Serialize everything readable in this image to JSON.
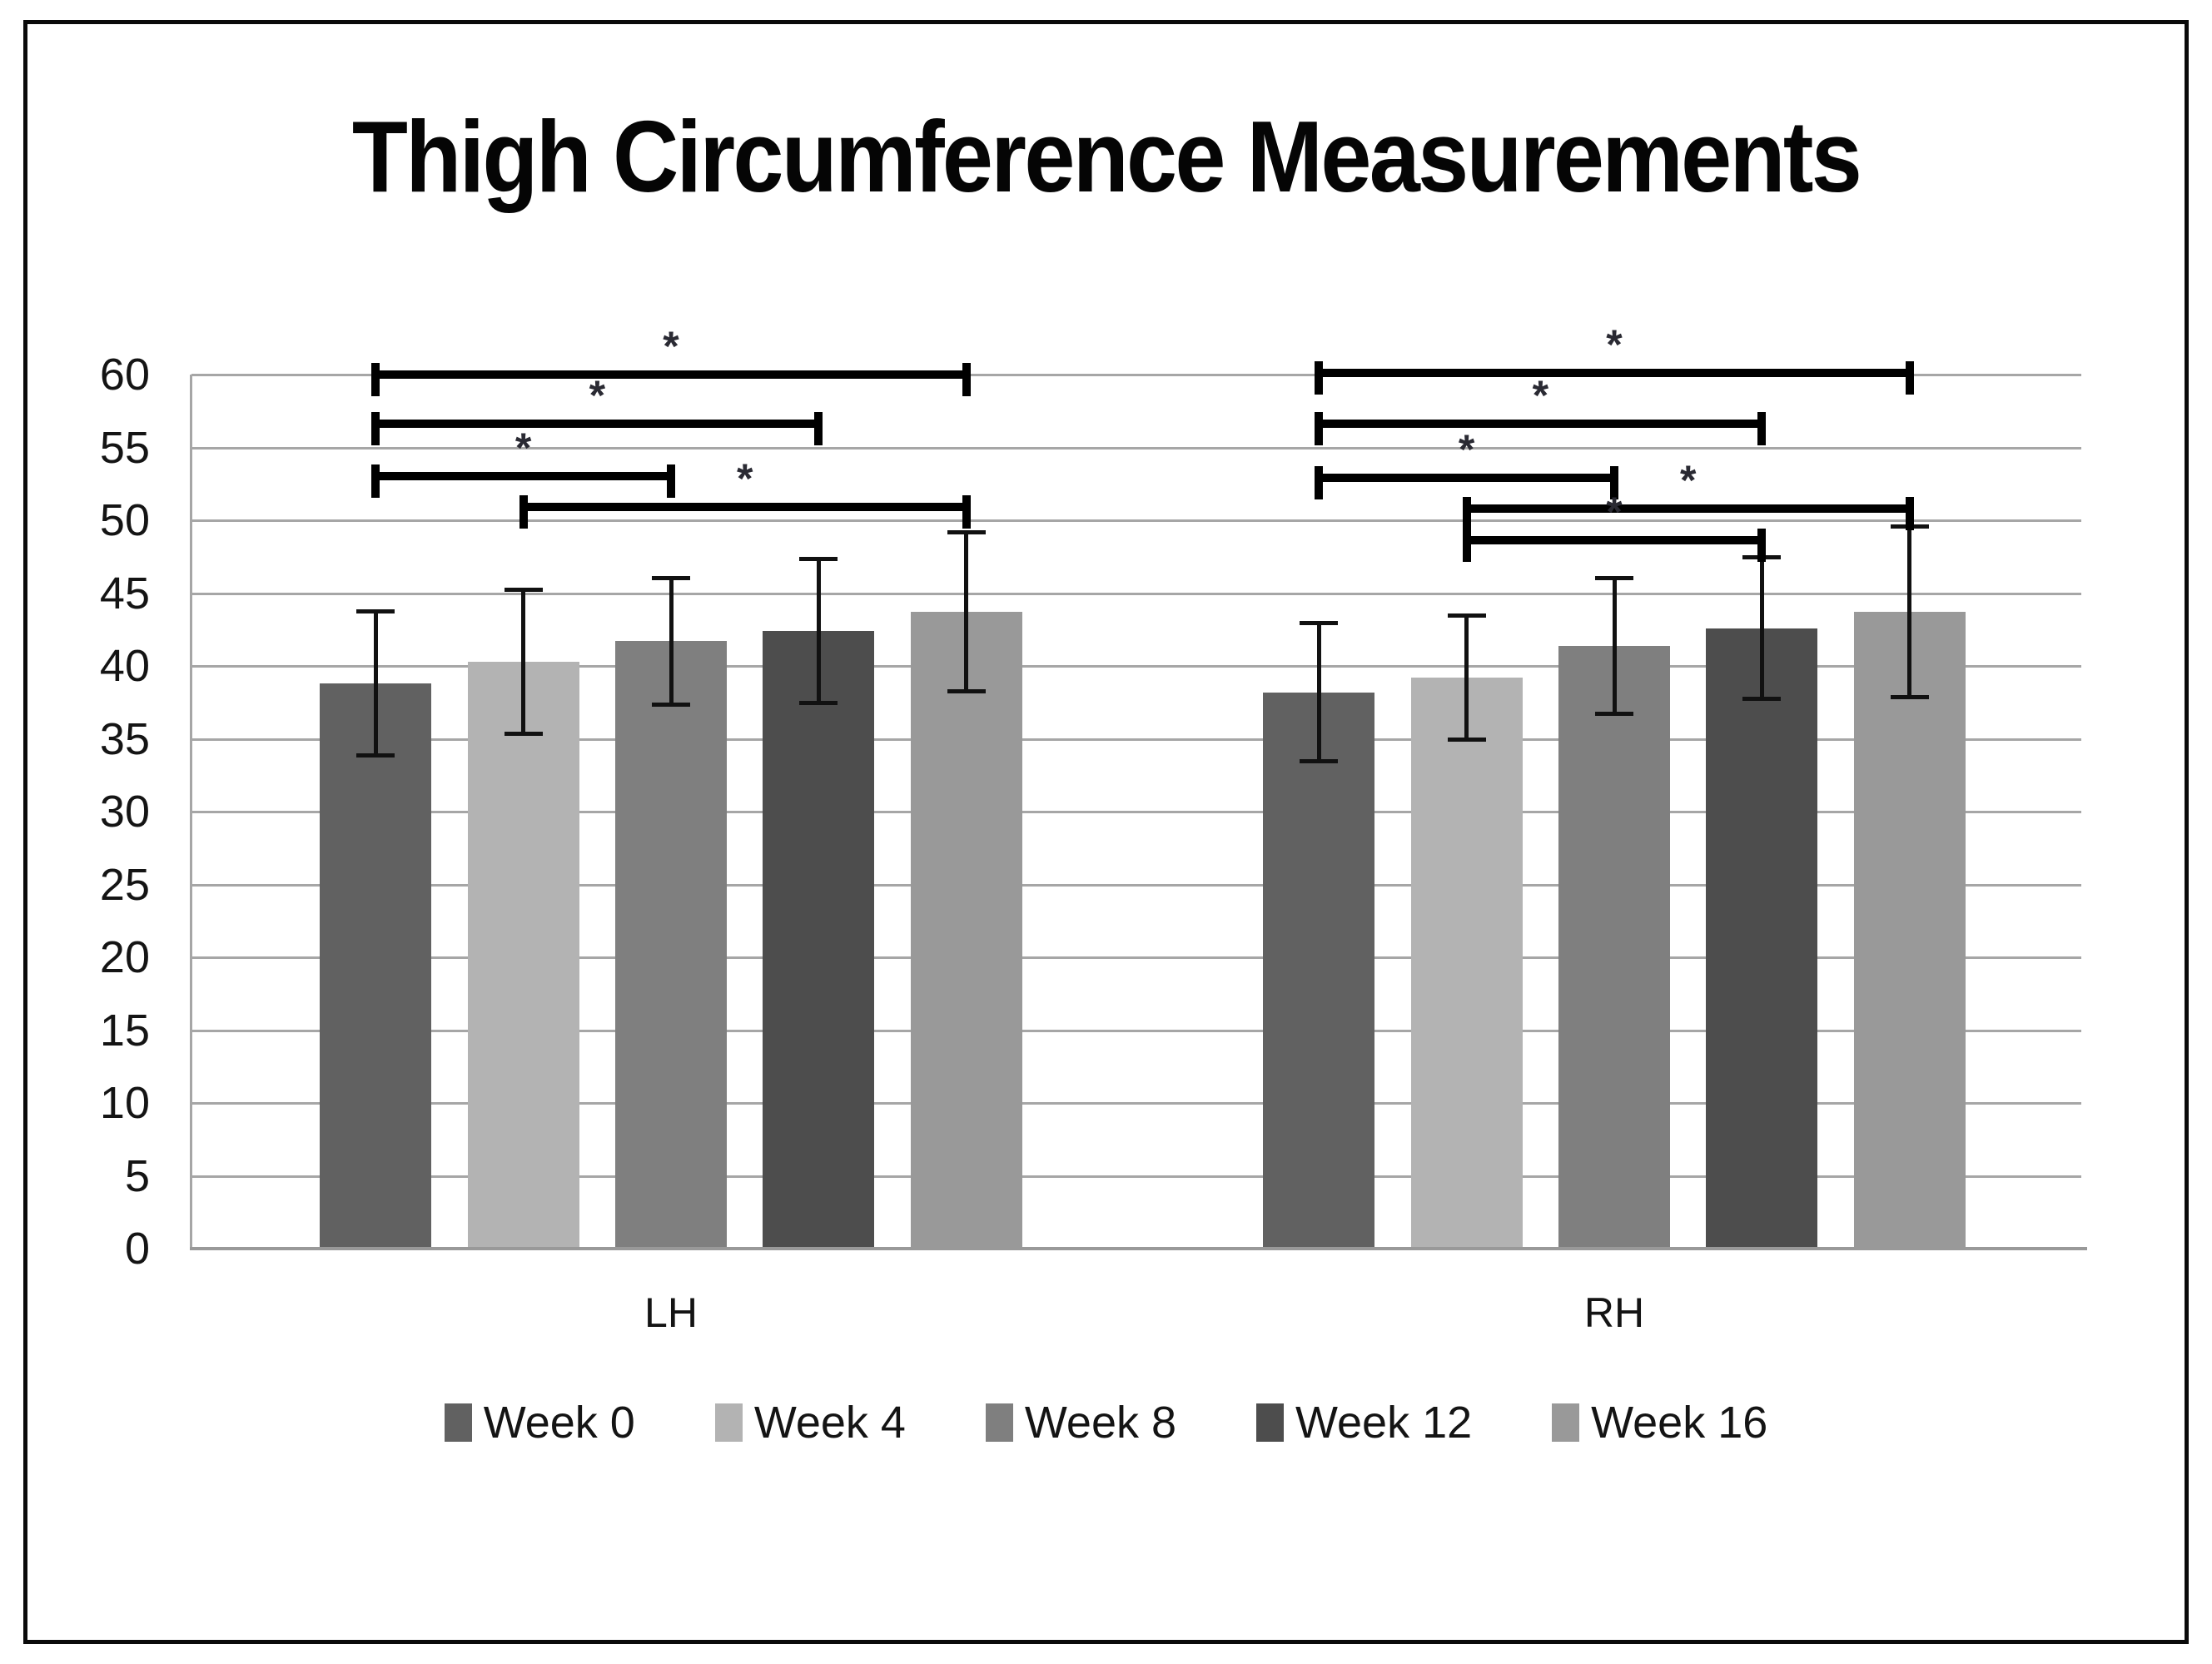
{
  "title": "Thigh Circumference Measurements",
  "colors": {
    "grid": "#a6a6a6",
    "axis": "#a6a6a6",
    "baseline": "#999999",
    "bracket": "#000000",
    "asterisk": "#2a2a33",
    "error_bar": "#111111",
    "text": "#141414",
    "frame_border": "#0a0a0a",
    "background": "#ffffff"
  },
  "chart_data": {
    "type": "bar",
    "title": "Thigh Circumference Measurements",
    "categories": [
      "LH",
      "RH"
    ],
    "series": [
      {
        "name": "Week 0",
        "color": "#616161",
        "values": [
          38.8,
          38.2
        ],
        "errors": [
          5.1,
          4.9
        ]
      },
      {
        "name": "Week 4",
        "color": "#b3b3b3",
        "values": [
          40.3,
          39.2
        ],
        "errors": [
          5.1,
          4.4
        ]
      },
      {
        "name": "Week 8",
        "color": "#7f7f7f",
        "values": [
          41.7,
          41.4
        ],
        "errors": [
          4.5,
          4.8
        ]
      },
      {
        "name": "Week 12",
        "color": "#4d4d4d",
        "values": [
          42.4,
          42.6
        ],
        "errors": [
          5.1,
          5.0
        ]
      },
      {
        "name": "Week 16",
        "color": "#999999",
        "values": [
          43.7,
          43.7
        ],
        "errors": [
          5.6,
          6.0
        ]
      }
    ],
    "ylim": [
      0,
      60
    ],
    "y_ticks": [
      0,
      5,
      10,
      15,
      20,
      25,
      30,
      35,
      40,
      45,
      50,
      55,
      60
    ],
    "grid": true,
    "legend_position": "bottom",
    "significance_label": "*",
    "significance_brackets": [
      {
        "category": "LH",
        "from": "Week 0",
        "to": "Week 16",
        "y": 60.3,
        "label": "*"
      },
      {
        "category": "LH",
        "from": "Week 0",
        "to": "Week 12",
        "y": 56.9,
        "label": "*"
      },
      {
        "category": "LH",
        "from": "Week 0",
        "to": "Week 8",
        "y": 53.3,
        "label": "*"
      },
      {
        "category": "LH",
        "from": "Week 4",
        "to": "Week 16",
        "y": 51.2,
        "label": "*"
      },
      {
        "category": "RH",
        "from": "Week 0",
        "to": "Week 16",
        "y": 60.4,
        "label": "*"
      },
      {
        "category": "RH",
        "from": "Week 0",
        "to": "Week 12",
        "y": 56.9,
        "label": "*"
      },
      {
        "category": "RH",
        "from": "Week 0",
        "to": "Week 8",
        "y": 53.2,
        "label": "*"
      },
      {
        "category": "RH",
        "from": "Week 4",
        "to": "Week 16",
        "y": 51.1,
        "label": "*"
      },
      {
        "category": "RH",
        "from": "Week 4",
        "to": "Week 12",
        "y": 48.9,
        "label": "*"
      }
    ]
  }
}
